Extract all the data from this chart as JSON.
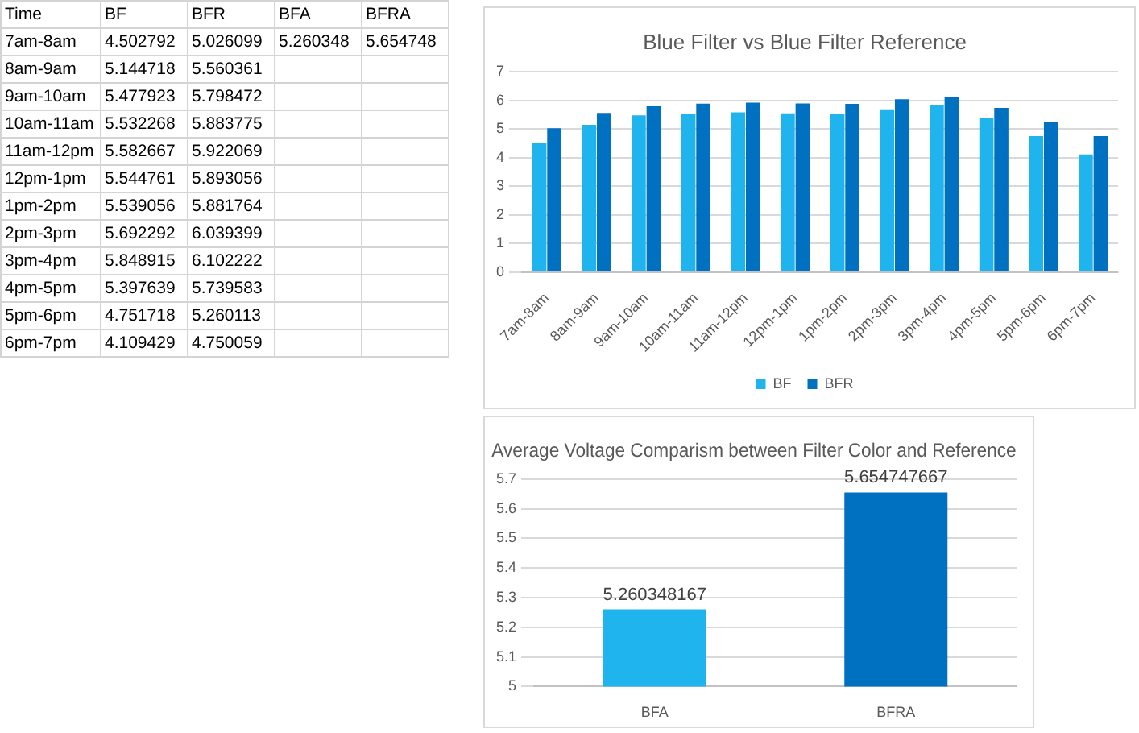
{
  "chart_data": [
    {
      "type": "bar",
      "title": "Blue Filter vs Blue Filter Reference",
      "legend_title": "Time",
      "categories": [
        "7am-8am",
        "8am-9am",
        "9am-10am",
        "10am-11am",
        "11am-12pm",
        "12pm-1pm",
        "1pm-2pm",
        "2pm-3pm",
        "3pm-4pm",
        "4pm-5pm",
        "5pm-6pm",
        "6pm-7pm"
      ],
      "series": [
        {
          "name": "BF",
          "color": "#1fb4ee",
          "values": [
            4.502792,
            5.144718,
            5.477923,
            5.532268,
            5.582667,
            5.544761,
            5.539056,
            5.692292,
            5.848915,
            5.397639,
            4.751718,
            4.109429
          ]
        },
        {
          "name": "BFR",
          "color": "#0070c0",
          "values": [
            5.026099,
            5.560361,
            5.798472,
            5.883775,
            5.922069,
            5.893056,
            5.881764,
            6.039399,
            6.102222,
            5.739583,
            5.260113,
            4.750059
          ]
        }
      ],
      "annotations": [
        "4.502792",
        "5.144718",
        "5.477923",
        "5.532268",
        "5.582667",
        "5.544761",
        "5.539056",
        "5.692292",
        "5.848915",
        "5.397639",
        "4.751718",
        "4.109429",
        "5.026099",
        "5.560361",
        "5.798472",
        "5.883775",
        "5.922069",
        "5.893056",
        "5.881764",
        "6.039399",
        "6.102222",
        "5.739583",
        "5.260113",
        "4.750059"
      ],
      "ylim": [
        0,
        7
      ],
      "yticks": [
        0,
        1,
        2,
        3,
        4,
        5,
        6,
        7
      ],
      "grid": "y",
      "legend": "bottom"
    },
    {
      "type": "bar",
      "title": "Average Voltage Comparism between Filter Color and Reference",
      "categories": [
        "BFA",
        "BFRA"
      ],
      "values": [
        5.260348167,
        5.654747667
      ],
      "colors": [
        "#1fb4ee",
        "#0070c0"
      ],
      "annotations": [
        "5.260348",
        "5.654748"
      ],
      "ylim": [
        5,
        5.7
      ],
      "yticks": [
        5,
        5.1,
        5.2,
        5.3,
        5.4,
        5.5,
        5.6,
        5.7
      ],
      "grid": "y",
      "data_labels": true
    }
  ]
}
